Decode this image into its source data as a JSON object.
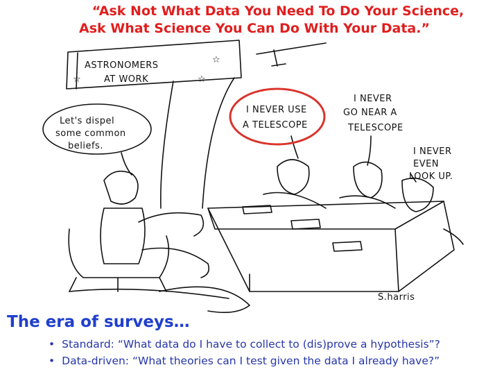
{
  "quote": {
    "line1": "“Ask Not What Data You Need To Do Your Science,",
    "line2": "Ask What Science You Can Do With Your Data.”",
    "color": "#e01e1e"
  },
  "cartoon": {
    "sign_line1": "ASTRONOMERS",
    "sign_line2": "AT WORK",
    "host_bubble": [
      "Let's dispel",
      "some common",
      "beliefs."
    ],
    "panelist1": [
      "I NEVER USE",
      "A TELESCOPE"
    ],
    "panelist2": [
      "I NEVER",
      "GO NEAR A",
      "TELESCOPE"
    ],
    "panelist3": [
      "I NEVER",
      "EVEN",
      "LOOK UP."
    ],
    "signature": "S.harris",
    "highlight_color": "#d9342b"
  },
  "heading": "The era of surveys…",
  "bullets": [
    "Standard: “What data do I have to collect to (dis)prove a hypothesis”?",
    "Data-driven: “What theories can I test given the data I already have?”"
  ],
  "colors": {
    "heading": "#1f3fcc",
    "bullets": "#2636a8"
  }
}
